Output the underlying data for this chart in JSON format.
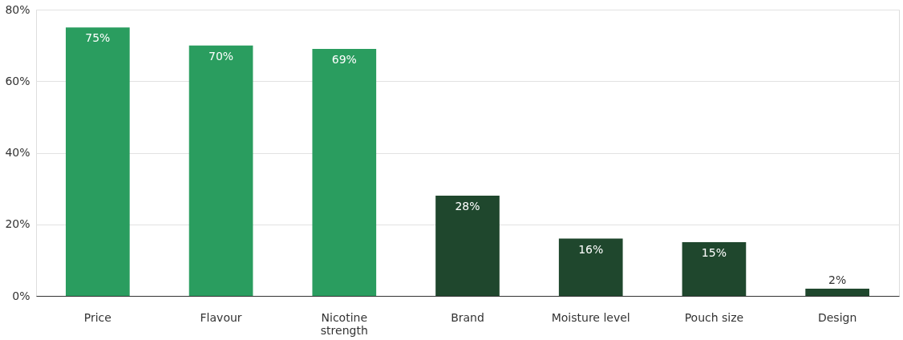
{
  "chart_data": {
    "type": "bar",
    "categories": [
      "Price",
      "Flavour",
      "Nicotine strength",
      "Brand",
      "Moisture level",
      "Pouch size",
      "Design"
    ],
    "values": [
      75,
      70,
      69,
      28,
      16,
      15,
      2
    ],
    "colors": [
      "#2a9d5f",
      "#2a9d5f",
      "#2a9d5f",
      "#1f472d",
      "#1f472d",
      "#1f472d",
      "#1f472d"
    ],
    "value_labels": [
      "75%",
      "70%",
      "69%",
      "28%",
      "16%",
      "15%",
      "2%"
    ],
    "ylim": [
      0,
      80
    ],
    "yticks": [
      {
        "value": 0,
        "label": "0%"
      },
      {
        "value": 20,
        "label": "20%"
      },
      {
        "value": 40,
        "label": "40%"
      },
      {
        "value": 60,
        "label": "60%"
      },
      {
        "value": 80,
        "label": "80%"
      }
    ],
    "grid": "y"
  }
}
